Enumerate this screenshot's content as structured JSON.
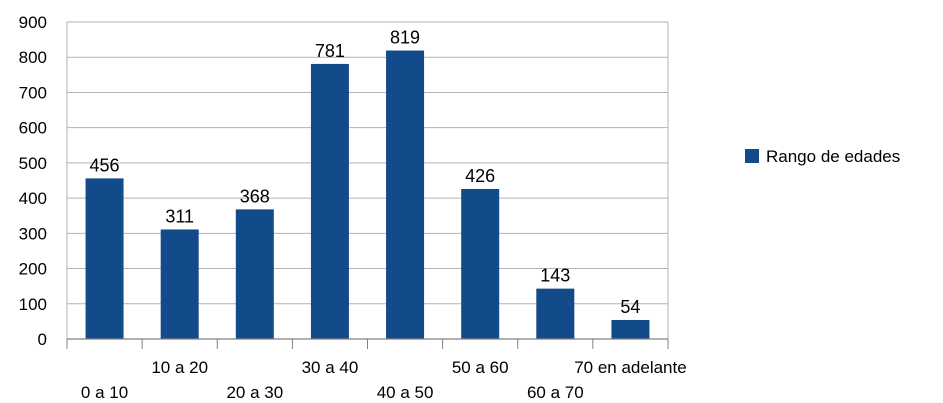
{
  "chart_data": {
    "type": "bar",
    "categories": [
      "0 a 10",
      "10 a 20",
      "20 a 30",
      "30 a 40",
      "40 a 50",
      "50 a 60",
      "60 a 70",
      "70 en adelante"
    ],
    "series": [
      {
        "name": "Rango de edades",
        "values": [
          456,
          311,
          368,
          781,
          819,
          426,
          143,
          54
        ],
        "color": "#124a8a"
      }
    ],
    "ylim": [
      0,
      900
    ],
    "yticks": [
      0,
      100,
      200,
      300,
      400,
      500,
      600,
      700,
      800,
      900
    ],
    "grid": true,
    "data_labels": true,
    "legend": "right"
  }
}
